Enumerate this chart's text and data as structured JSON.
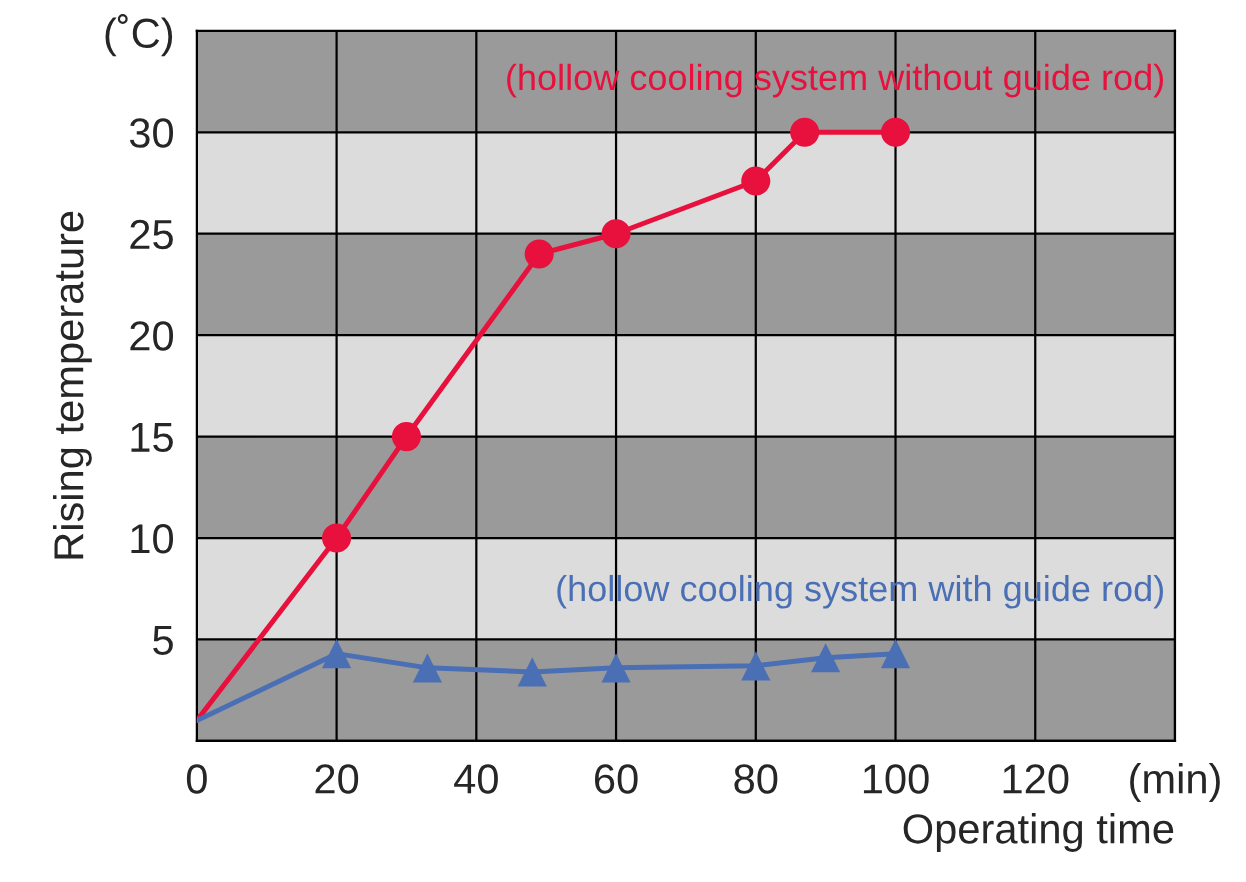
{
  "chart_data": {
    "type": "line",
    "xlabel": "Operating time",
    "ylabel": "Rising temperature",
    "xlim": [
      0,
      140
    ],
    "xticks": [
      0,
      20,
      40,
      60,
      80,
      100,
      120,
      {
        "value": 140,
        "label": "(min)"
      }
    ],
    "ylim": [
      0,
      35
    ],
    "yticks": [
      {
        "value": 0,
        "label": null
      },
      5,
      10,
      15,
      20,
      25,
      30,
      {
        "value": 35,
        "label": "(˚C)"
      }
    ],
    "grid": true,
    "line_style": "solid",
    "bands": [
      {
        "axis": "y",
        "from": 0,
        "to": 5,
        "color": "#9a9a9a"
      },
      {
        "axis": "y",
        "from": 10,
        "to": 15,
        "color": "#9a9a9a"
      },
      {
        "axis": "y",
        "from": 20,
        "to": 25,
        "color": "#9a9a9a"
      },
      {
        "axis": "y",
        "from": 30,
        "to": 35,
        "color": "#9a9a9a"
      }
    ],
    "series": [
      {
        "name": "(hollow cooling system without guide rod)",
        "color": "#e8103c",
        "marker": "none",
        "x": [
          0,
          20,
          30,
          49,
          60,
          80,
          87,
          100
        ],
        "values": [
          1,
          10,
          15,
          24,
          25,
          27.6,
          30,
          30
        ]
      },
      {
        "type": "scatter",
        "color": "#e8103c",
        "marker": "circle",
        "x": [
          20,
          30,
          49,
          60,
          80,
          87,
          100
        ],
        "values": [
          10,
          15,
          24,
          25,
          27.6,
          30,
          30
        ]
      },
      {
        "name": "(hollow cooling system with guide rod)",
        "color": "#4a6fb5",
        "marker": "none",
        "x": [
          0,
          20,
          33,
          48,
          60,
          80,
          90,
          100
        ],
        "values": [
          1,
          4.3,
          3.6,
          3.4,
          3.6,
          3.7,
          4.1,
          4.3
        ]
      },
      {
        "type": "scatter",
        "color": "#4a6fb5",
        "marker": "triangle",
        "x": [
          20,
          33,
          48,
          60,
          80,
          90,
          100
        ],
        "values": [
          4.3,
          3.6,
          3.4,
          3.6,
          3.7,
          4.1,
          4.3
        ]
      }
    ]
  }
}
